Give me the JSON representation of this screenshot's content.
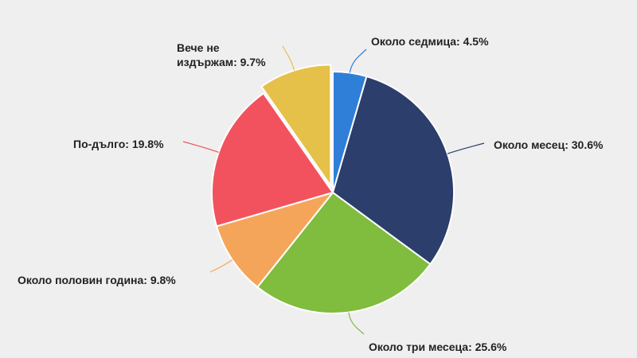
{
  "chart_data": {
    "type": "pie",
    "slices": [
      {
        "label": "Около седмица",
        "value": 4.5,
        "display": "Около седмица: 4.5%",
        "color": "#2f7ed8",
        "label_lines": [
          "Около седмица: 4.5%"
        ]
      },
      {
        "label": "Около месец",
        "value": 30.6,
        "display": "Около месец: 30.6%",
        "color": "#2c3e6b",
        "label_lines": [
          "Около месец: 30.6%"
        ]
      },
      {
        "label": "Около три месеца",
        "value": 25.6,
        "display": "Около три месеца: 25.6%",
        "color": "#80bc3d",
        "label_lines": [
          "Около три месеца: 25.6%"
        ]
      },
      {
        "label": "Около половин година",
        "value": 9.8,
        "display": "Около половин година: 9.8%",
        "color": "#f5a55a",
        "label_lines": [
          "Около половин година: 9.8%"
        ]
      },
      {
        "label": "По-дълго",
        "value": 19.8,
        "display": "По-дълго: 19.8%",
        "color": "#f2525d",
        "label_lines": [
          "По-дълго: 19.8%"
        ]
      },
      {
        "label": "Вече не издържам",
        "value": 9.7,
        "display": "Вече не издържам: 9.7%",
        "color": "#e5c14a",
        "label_lines": [
          "Вече не",
          "издържам: 9.7%"
        ],
        "exploded": true
      }
    ],
    "legend": "none"
  }
}
